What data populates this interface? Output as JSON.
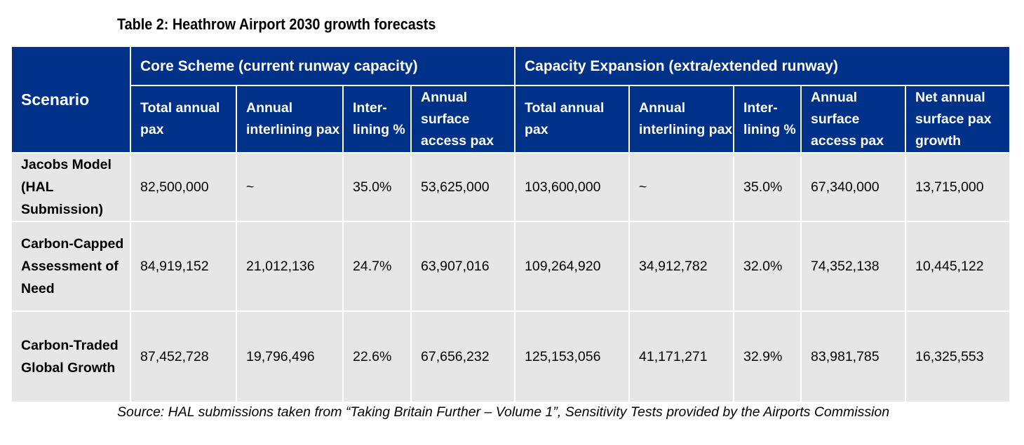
{
  "title": "Table 2: Heathrow Airport 2030 growth forecasts",
  "table": {
    "scenario_header": "Scenario",
    "groups": [
      "Core Scheme (current runway capacity)",
      "Capacity Expansion (extra/extended runway)"
    ],
    "columns": [
      "Total annual pax",
      "Annual interlining pax",
      "Inter-lining %",
      "Annual surface access pax",
      "Total annual pax",
      "Annual interlining pax",
      "Inter-lining %",
      "Annual surface access pax",
      "Net annual surface pax growth"
    ],
    "rows": [
      {
        "name": "Jacobs Model (HAL Submission)",
        "cells": [
          "82,500,000",
          "~",
          "35.0%",
          "53,625,000",
          "103,600,000",
          "~",
          "35.0%",
          "67,340,000",
          "13,715,000"
        ]
      },
      {
        "name": "Carbon-Capped Assessment of Need",
        "cells": [
          "84,919,152",
          "21,012,136",
          "24.7%",
          "63,907,016",
          "109,264,920",
          "34,912,782",
          "32.0%",
          "74,352,138",
          "10,445,122"
        ]
      },
      {
        "name": "Carbon-Traded Global Growth",
        "cells": [
          "87,452,728",
          "19,796,496",
          "22.6%",
          "67,656,232",
          "125,153,056",
          "41,171,271",
          "32.9%",
          "83,981,785",
          "16,325,553"
        ]
      }
    ]
  },
  "source": "Source: HAL submissions taken from “Taking Britain Further – Volume 1”, Sensitivity Tests provided by the Airports Commission",
  "colors": {
    "header_bg": "#003189",
    "body_bg": "#e6e6e6"
  }
}
